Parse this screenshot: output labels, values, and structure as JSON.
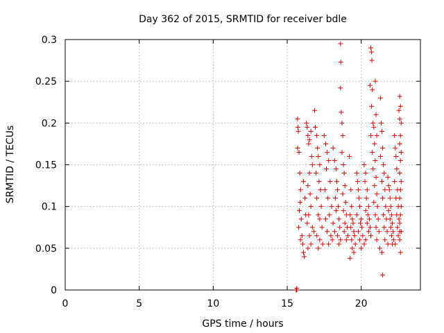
{
  "chart_data": {
    "type": "scatter",
    "title": "Day 362 of 2015, SRMTID for receiver bdle",
    "xlabel": "GPS time / hours",
    "ylabel": "SRMTID / TECUs",
    "xlim": [
      0,
      24
    ],
    "ylim": [
      0,
      0.3
    ],
    "xticks": [
      0,
      5,
      10,
      15,
      20
    ],
    "xtick_labels": [
      "0",
      "5",
      "10",
      "15",
      "20"
    ],
    "yticks": [
      0,
      0.05,
      0.1,
      0.15,
      0.2,
      0.25,
      0.3
    ],
    "ytick_labels": [
      "0",
      "0.05",
      "0.1",
      "0.15",
      "0.2",
      "0.25",
      "0.3"
    ],
    "grid": true,
    "marker": "plus",
    "series_color": "#e00000",
    "series": [
      {
        "name": "SRMTID",
        "points": [
          [
            15.6,
            0.0
          ],
          [
            15.62,
            0.0
          ],
          [
            15.65,
            0.0
          ],
          [
            15.65,
            0.002
          ],
          [
            15.7,
            0.205
          ],
          [
            15.72,
            0.195
          ],
          [
            15.75,
            0.19
          ],
          [
            15.7,
            0.17
          ],
          [
            15.8,
            0.165
          ],
          [
            15.85,
            0.14
          ],
          [
            15.9,
            0.12
          ],
          [
            15.88,
            0.105
          ],
          [
            15.82,
            0.095
          ],
          [
            15.95,
            0.085
          ],
          [
            15.78,
            0.075
          ],
          [
            15.9,
            0.06
          ],
          [
            16.0,
            0.065
          ],
          [
            16.05,
            0.055
          ],
          [
            16.1,
            0.045
          ],
          [
            16.15,
            0.04
          ],
          [
            16.1,
            0.13
          ],
          [
            16.2,
            0.11
          ],
          [
            16.25,
            0.09
          ],
          [
            16.3,
            0.2
          ],
          [
            16.35,
            0.195
          ],
          [
            16.4,
            0.185
          ],
          [
            16.45,
            0.175
          ],
          [
            16.5,
            0.18
          ],
          [
            16.6,
            0.19
          ],
          [
            16.65,
            0.16
          ],
          [
            16.7,
            0.15
          ],
          [
            16.5,
            0.14
          ],
          [
            16.4,
            0.125
          ],
          [
            16.55,
            0.115
          ],
          [
            16.6,
            0.1
          ],
          [
            16.45,
            0.09
          ],
          [
            16.35,
            0.08
          ],
          [
            16.7,
            0.075
          ],
          [
            16.5,
            0.065
          ],
          [
            16.8,
            0.07
          ],
          [
            16.4,
            0.05
          ],
          [
            16.6,
            0.055
          ],
          [
            16.85,
            0.215
          ],
          [
            16.9,
            0.195
          ],
          [
            17.0,
            0.185
          ],
          [
            17.05,
            0.17
          ],
          [
            17.1,
            0.16
          ],
          [
            17.2,
            0.15
          ],
          [
            16.95,
            0.14
          ],
          [
            17.15,
            0.13
          ],
          [
            17.25,
            0.12
          ],
          [
            17.0,
            0.11
          ],
          [
            17.3,
            0.1
          ],
          [
            17.1,
            0.09
          ],
          [
            17.2,
            0.085
          ],
          [
            17.35,
            0.075
          ],
          [
            17.0,
            0.065
          ],
          [
            17.2,
            0.06
          ],
          [
            17.4,
            0.055
          ],
          [
            17.1,
            0.05
          ],
          [
            17.5,
            0.185
          ],
          [
            17.6,
            0.175
          ],
          [
            17.7,
            0.165
          ],
          [
            17.8,
            0.155
          ],
          [
            17.65,
            0.145
          ],
          [
            17.9,
            0.13
          ],
          [
            17.55,
            0.12
          ],
          [
            17.75,
            0.11
          ],
          [
            18.0,
            0.1
          ],
          [
            17.85,
            0.09
          ],
          [
            17.6,
            0.085
          ],
          [
            18.1,
            0.08
          ],
          [
            17.7,
            0.07
          ],
          [
            17.95,
            0.065
          ],
          [
            18.05,
            0.06
          ],
          [
            17.8,
            0.055
          ],
          [
            18.2,
            0.07
          ],
          [
            18.1,
            0.17
          ],
          [
            18.2,
            0.155
          ],
          [
            18.3,
            0.145
          ],
          [
            18.35,
            0.13
          ],
          [
            18.4,
            0.12
          ],
          [
            18.25,
            0.11
          ],
          [
            18.45,
            0.1
          ],
          [
            18.3,
            0.095
          ],
          [
            18.5,
            0.085
          ],
          [
            18.55,
            0.075
          ],
          [
            18.4,
            0.065
          ],
          [
            18.6,
            0.06
          ],
          [
            18.5,
            0.055
          ],
          [
            18.6,
            0.295
          ],
          [
            18.62,
            0.273
          ],
          [
            18.6,
            0.242
          ],
          [
            18.65,
            0.213
          ],
          [
            18.7,
            0.2
          ],
          [
            18.75,
            0.185
          ],
          [
            18.7,
            0.165
          ],
          [
            18.8,
            0.15
          ],
          [
            18.85,
            0.14
          ],
          [
            18.9,
            0.125
          ],
          [
            18.75,
            0.115
          ],
          [
            18.95,
            0.105
          ],
          [
            18.8,
            0.095
          ],
          [
            19.0,
            0.09
          ],
          [
            18.9,
            0.08
          ],
          [
            19.05,
            0.075
          ],
          [
            18.85,
            0.07
          ],
          [
            19.1,
            0.065
          ],
          [
            19.0,
            0.06
          ],
          [
            19.2,
            0.16
          ],
          [
            19.3,
            0.12
          ],
          [
            19.35,
            0.1
          ],
          [
            19.25,
            0.09
          ],
          [
            19.4,
            0.085
          ],
          [
            19.45,
            0.08
          ],
          [
            19.3,
            0.075
          ],
          [
            19.5,
            0.07
          ],
          [
            19.55,
            0.065
          ],
          [
            19.35,
            0.06
          ],
          [
            19.6,
            0.055
          ],
          [
            19.4,
            0.05
          ],
          [
            19.25,
            0.038
          ],
          [
            19.5,
            0.045
          ],
          [
            19.7,
            0.14
          ],
          [
            19.75,
            0.13
          ],
          [
            19.8,
            0.12
          ],
          [
            19.85,
            0.11
          ],
          [
            19.9,
            0.1
          ],
          [
            19.7,
            0.09
          ],
          [
            20.0,
            0.085
          ],
          [
            19.95,
            0.08
          ],
          [
            20.05,
            0.075
          ],
          [
            19.8,
            0.07
          ],
          [
            20.1,
            0.065
          ],
          [
            19.9,
            0.06
          ],
          [
            20.2,
            0.055
          ],
          [
            20.0,
            0.05
          ],
          [
            20.2,
            0.15
          ],
          [
            20.3,
            0.14
          ],
          [
            20.25,
            0.13
          ],
          [
            20.4,
            0.12
          ],
          [
            20.35,
            0.11
          ],
          [
            20.5,
            0.1
          ],
          [
            20.3,
            0.095
          ],
          [
            20.45,
            0.09
          ],
          [
            20.55,
            0.085
          ],
          [
            20.4,
            0.08
          ],
          [
            20.6,
            0.075
          ],
          [
            20.5,
            0.07
          ],
          [
            20.65,
            0.065
          ],
          [
            20.3,
            0.06
          ],
          [
            20.65,
            0.29
          ],
          [
            20.7,
            0.285
          ],
          [
            20.72,
            0.275
          ],
          [
            20.6,
            0.245
          ],
          [
            20.75,
            0.24
          ],
          [
            20.7,
            0.22
          ],
          [
            20.8,
            0.2
          ],
          [
            20.85,
            0.195
          ],
          [
            20.65,
            0.185
          ],
          [
            20.9,
            0.175
          ],
          [
            20.75,
            0.165
          ],
          [
            20.95,
            0.155
          ],
          [
            20.8,
            0.145
          ],
          [
            21.0,
            0.135
          ],
          [
            20.9,
            0.125
          ],
          [
            21.05,
            0.115
          ],
          [
            20.85,
            0.105
          ],
          [
            21.1,
            0.1
          ],
          [
            20.95,
            0.09
          ],
          [
            21.15,
            0.085
          ],
          [
            21.0,
            0.075
          ],
          [
            21.2,
            0.07
          ],
          [
            21.05,
            0.06
          ],
          [
            21.25,
            0.05
          ],
          [
            20.95,
            0.25
          ],
          [
            21.0,
            0.21
          ],
          [
            21.05,
            0.185
          ],
          [
            21.3,
            0.23
          ],
          [
            21.35,
            0.2
          ],
          [
            21.4,
            0.19
          ],
          [
            21.45,
            0.17
          ],
          [
            21.3,
            0.16
          ],
          [
            21.5,
            0.15
          ],
          [
            21.55,
            0.14
          ],
          [
            21.4,
            0.13
          ],
          [
            21.6,
            0.12
          ],
          [
            21.45,
            0.11
          ],
          [
            21.65,
            0.1
          ],
          [
            21.5,
            0.09
          ],
          [
            21.7,
            0.085
          ],
          [
            21.55,
            0.075
          ],
          [
            21.75,
            0.07
          ],
          [
            21.6,
            0.06
          ],
          [
            21.8,
            0.055
          ],
          [
            21.4,
            0.045
          ],
          [
            21.45,
            0.018
          ],
          [
            21.8,
            0.135
          ],
          [
            21.85,
            0.125
          ],
          [
            21.9,
            0.12
          ],
          [
            21.95,
            0.11
          ],
          [
            22.0,
            0.1
          ],
          [
            21.85,
            0.095
          ],
          [
            22.05,
            0.09
          ],
          [
            21.95,
            0.085
          ],
          [
            22.1,
            0.08
          ],
          [
            22.0,
            0.075
          ],
          [
            22.15,
            0.07
          ],
          [
            22.05,
            0.065
          ],
          [
            22.2,
            0.06
          ],
          [
            22.1,
            0.055
          ],
          [
            22.25,
            0.185
          ],
          [
            22.3,
            0.17
          ],
          [
            22.35,
            0.16
          ],
          [
            22.4,
            0.145
          ],
          [
            22.25,
            0.13
          ],
          [
            22.45,
            0.12
          ],
          [
            22.35,
            0.11
          ],
          [
            22.5,
            0.1
          ],
          [
            22.4,
            0.09
          ],
          [
            22.55,
            0.085
          ],
          [
            22.45,
            0.075
          ],
          [
            22.6,
            0.07
          ],
          [
            22.5,
            0.065
          ],
          [
            22.3,
            0.055
          ],
          [
            22.6,
            0.232
          ],
          [
            22.65,
            0.22
          ],
          [
            22.55,
            0.215
          ],
          [
            22.6,
            0.205
          ],
          [
            22.7,
            0.2
          ],
          [
            22.65,
            0.185
          ],
          [
            22.6,
            0.175
          ],
          [
            22.7,
            0.165
          ],
          [
            22.65,
            0.155
          ],
          [
            22.6,
            0.14
          ],
          [
            22.7,
            0.13
          ],
          [
            22.65,
            0.12
          ],
          [
            22.6,
            0.11
          ],
          [
            22.7,
            0.1
          ],
          [
            22.65,
            0.09
          ],
          [
            22.6,
            0.08
          ],
          [
            22.7,
            0.07
          ],
          [
            22.6,
            0.06
          ],
          [
            22.65,
            0.045
          ]
        ]
      }
    ]
  }
}
